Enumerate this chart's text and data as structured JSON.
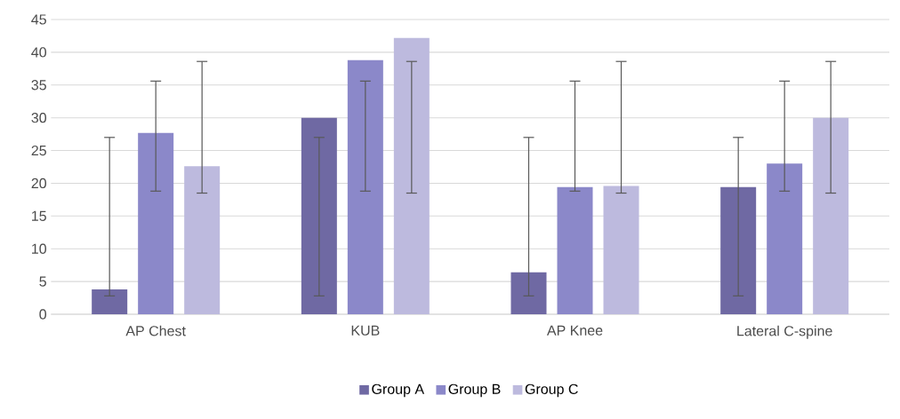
{
  "chart_data": {
    "type": "bar",
    "categories": [
      "AP Chest",
      "KUB",
      "AP Knee",
      "Lateral C-spine"
    ],
    "series": [
      {
        "name": "Group A",
        "color": "#6f69a3",
        "values": [
          3.8,
          30,
          6.4,
          19.4
        ],
        "errors": [
          [
            2.8,
            27
          ],
          [
            2.8,
            27
          ],
          [
            2.8,
            27
          ],
          [
            2.8,
            27
          ]
        ]
      },
      {
        "name": "Group B",
        "color": "#8b88c9",
        "values": [
          27.7,
          38.8,
          19.4,
          23
        ],
        "errors": [
          [
            18.8,
            35.6
          ],
          [
            18.8,
            35.6
          ],
          [
            18.8,
            35.6
          ],
          [
            18.8,
            35.6
          ]
        ]
      },
      {
        "name": "Group C",
        "color": "#bdbade",
        "values": [
          22.6,
          42.2,
          19.6,
          30
        ],
        "errors": [
          [
            18.5,
            38.6
          ],
          [
            18.5,
            38.6
          ],
          [
            18.5,
            38.6
          ],
          [
            18.5,
            38.6
          ]
        ]
      }
    ],
    "ylim": [
      0,
      45
    ],
    "yticks": [
      0,
      5,
      10,
      15,
      20,
      25,
      30,
      35,
      40,
      45
    ],
    "grid": "y",
    "legend": "bottom"
  }
}
